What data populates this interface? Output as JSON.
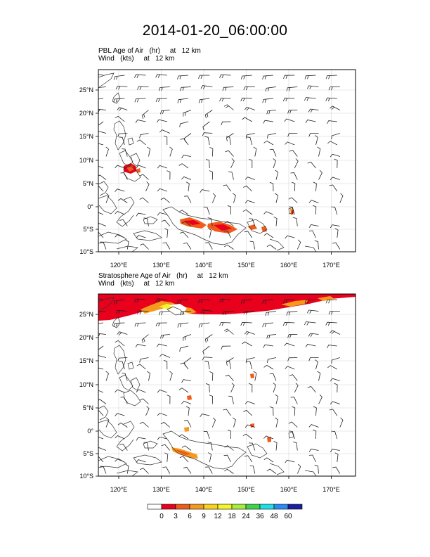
{
  "title": "2014-01-20_06:00:00",
  "panels": [
    {
      "id": "pbl",
      "line1": "PBL Age of Air   (hr)     at   12 km",
      "line2": "Wind   (kts)     at   12 km"
    },
    {
      "id": "strat",
      "line1": "Stratosphere Age of Air   (hr)     at   12 km",
      "line2": "Wind   (kts)     at   12 km"
    }
  ],
  "axes": {
    "lon_labels": [
      "120°E",
      "130°E",
      "140°E",
      "150°E",
      "160°E",
      "170°E"
    ],
    "lat_labels": [
      "25°N",
      "20°N",
      "15°N",
      "10°N",
      "5°N",
      "0°",
      "5°S",
      "10°S"
    ]
  },
  "colorbar": {
    "labels": [
      "0",
      "3",
      "6",
      "9",
      "12",
      "18",
      "24",
      "36",
      "48",
      "60"
    ],
    "colors": [
      "#ffffff",
      "#e8001c",
      "#f05a1a",
      "#f59a1c",
      "#f9d21e",
      "#f3f528",
      "#a6ee3a",
      "#3dd24c",
      "#1de0e6",
      "#2a8cf0",
      "#1c1fa0"
    ]
  }
}
